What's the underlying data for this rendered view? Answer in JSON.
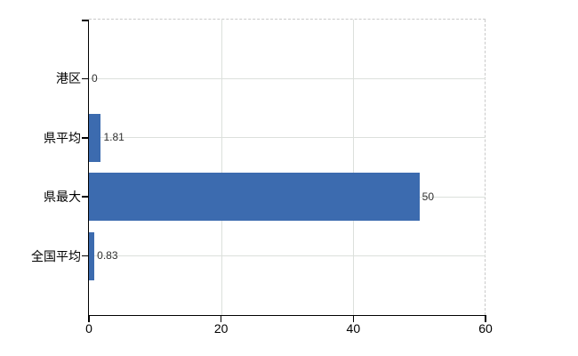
{
  "chart_data": {
    "type": "bar",
    "orientation": "horizontal",
    "title": "",
    "xlabel": "",
    "ylabel": "",
    "categories": [
      "港区",
      "県平均",
      "県最大",
      "全国平均"
    ],
    "values": [
      0,
      1.81,
      50,
      0.83
    ],
    "value_labels": [
      "0",
      "1.81",
      "50",
      "0.83"
    ],
    "xlim": [
      0,
      60
    ],
    "x_ticks": [
      0,
      20,
      40,
      60
    ],
    "x_tick_labels": [
      "0",
      "20",
      "40",
      "60"
    ],
    "grid": true,
    "legend": "none",
    "colors": {
      "bar": "#3c6baf",
      "gridline": "#dce0dc",
      "frame_dash": "#c9c9c9",
      "axis": "#000000",
      "background": "#ffffff"
    }
  }
}
